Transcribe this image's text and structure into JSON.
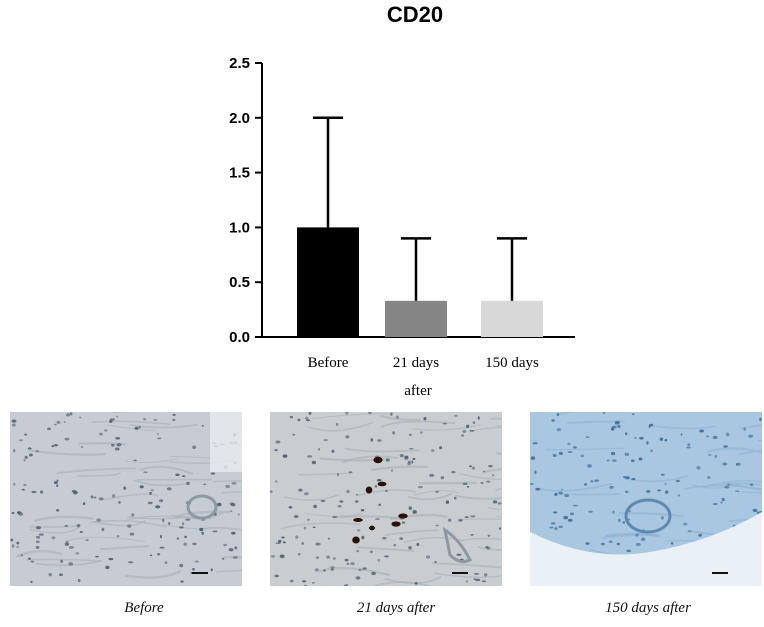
{
  "chart_data": {
    "type": "bar",
    "title": "CD20",
    "categories": [
      "Before",
      "21 days",
      "150 days"
    ],
    "category_suffix": "after",
    "values": [
      1.0,
      0.33,
      0.33
    ],
    "errors": [
      1.0,
      0.57,
      0.57
    ],
    "ylim": [
      0,
      2.5
    ],
    "yticks": [
      "0.0",
      "0.5",
      "1.0",
      "1.5",
      "2.0",
      "2.5"
    ],
    "colors": [
      "#000000",
      "#858585",
      "#d8d8d8"
    ]
  },
  "micrographs": [
    {
      "caption": "Before",
      "tone": "#c6ccd2"
    },
    {
      "caption": "21 days after",
      "tone": "#c9cdd0"
    },
    {
      "caption": "150 days after",
      "tone": "#a9c7e0"
    }
  ]
}
